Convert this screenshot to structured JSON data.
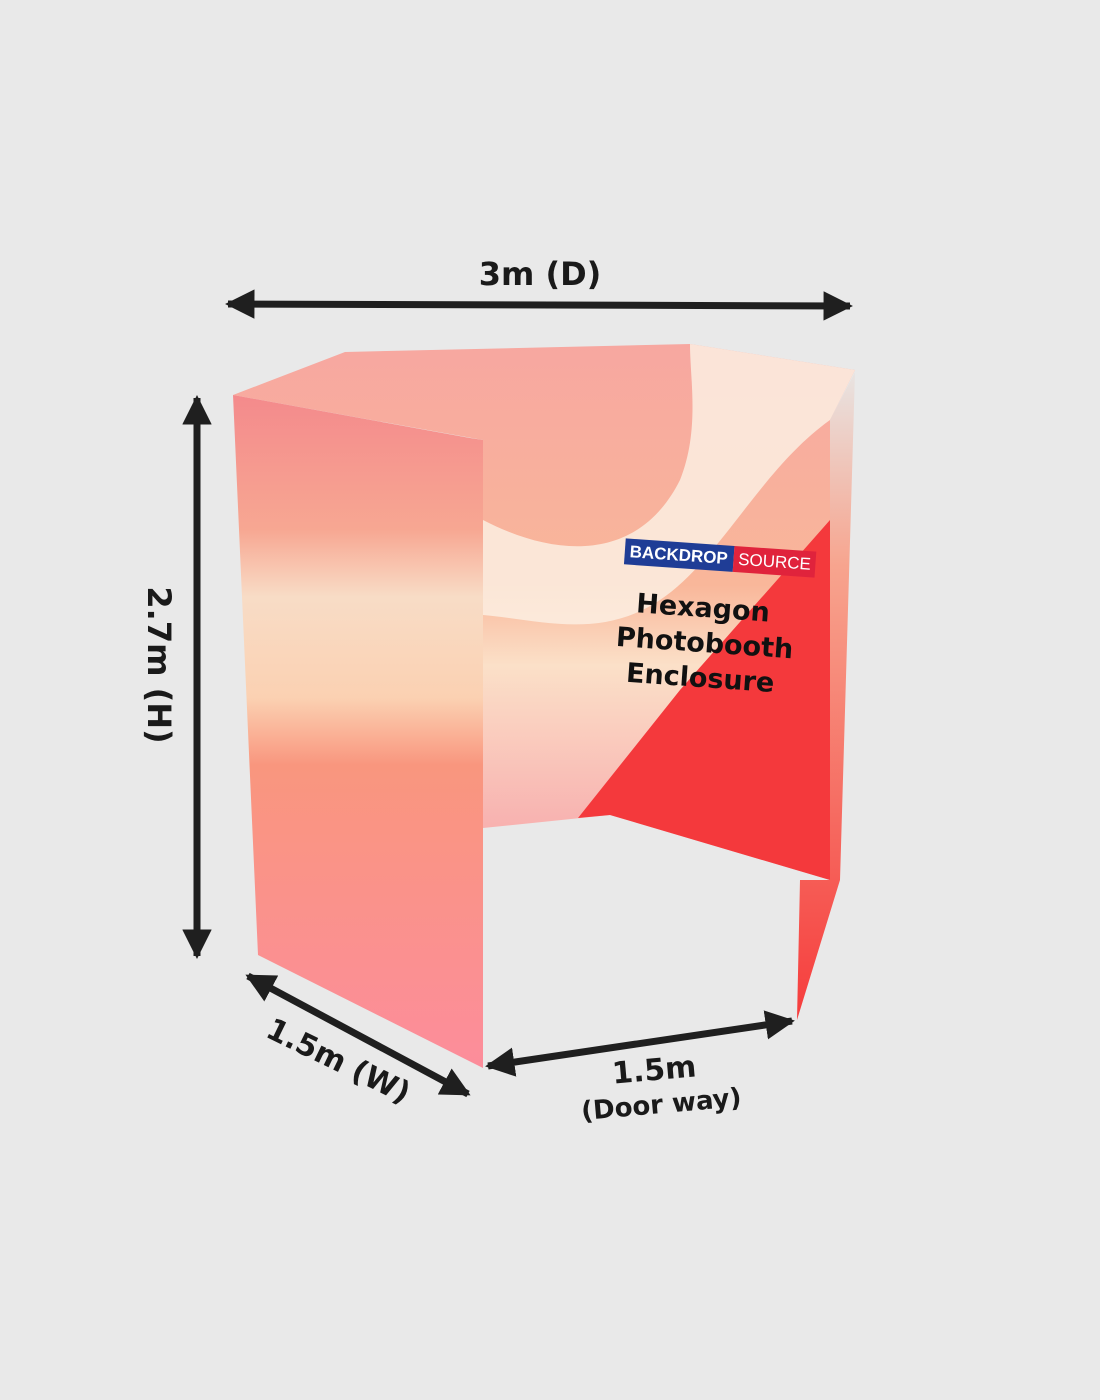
{
  "dimensions": {
    "depth": "3m (D)",
    "height": "2.7m (H)",
    "width": "1.5m (W)",
    "doorway": "1.5m",
    "doorway_note": "(Door way)"
  },
  "logo": {
    "left": "BACKDROP",
    "right": "SOURCE"
  },
  "product": {
    "lines": [
      "Hexagon",
      "Photobooth",
      "Enclosure"
    ]
  }
}
